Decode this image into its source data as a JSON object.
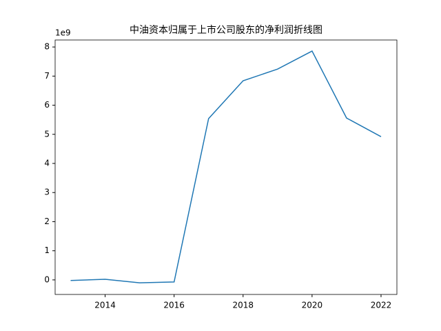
{
  "chart_data": {
    "type": "line",
    "title": "中油资本归属于上市公司股东的净利润折线图",
    "offset_text": "1e9",
    "x": [
      2013,
      2014,
      2015,
      2016,
      2017,
      2018,
      2019,
      2020,
      2021,
      2022
    ],
    "series": [
      {
        "color": "#1f77b4",
        "values": [
          -0.02,
          0.02,
          -0.1,
          -0.07,
          5.54,
          6.84,
          7.24,
          7.86,
          5.56,
          4.92
        ]
      }
    ],
    "xlim": [
      2012.55,
      2022.46
    ],
    "xticks": [
      2014,
      2016,
      2018,
      2020,
      2022
    ],
    "ylim": [
      -0.5,
      8.24
    ],
    "yticks": [
      0,
      1,
      2,
      3,
      4,
      5,
      6,
      7,
      8
    ],
    "grid": false
  }
}
